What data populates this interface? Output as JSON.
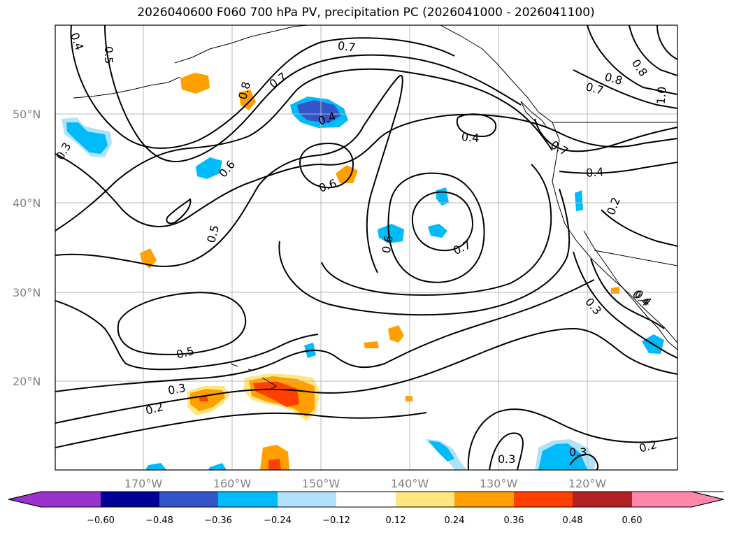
{
  "title": "2026040600 F060 700 hPa PV, precipitation PC (2026041000 - 2026041100)",
  "lat_labels": [
    "50°N",
    "40°N",
    "30°N",
    "20°N"
  ],
  "lon_labels": [
    "170°W",
    "160°W",
    "150°W",
    "140°W",
    "130°W",
    "120°W"
  ],
  "contour_labels": [
    "0.4",
    "0.5",
    "0.7",
    "0.7",
    "0.8",
    "0.4",
    "0.3",
    "0.6",
    "0.8",
    "0.7",
    "0.8",
    "0.4",
    "1.0",
    "0.7",
    "0.4",
    "0.6",
    "0.5",
    "0.6",
    "0.7",
    "0.4",
    "0.2",
    "0.3",
    "0.5",
    "0.3",
    "0.2",
    "0.3",
    "0.3",
    "0.2",
    "0.4"
  ],
  "colorbar": {
    "ticks": [
      "−0.60",
      "−0.48",
      "−0.36",
      "−0.24",
      "−0.12",
      "0.12",
      "0.24",
      "0.36",
      "0.48",
      "0.60"
    ],
    "colors": [
      "#9933cc",
      "#000099",
      "#3355cc",
      "#00bbf9",
      "#b0e2fa",
      "#ffffff",
      "#ffe680",
      "#ffa000",
      "#ff4000",
      "#b22222",
      "#ff88aa"
    ]
  },
  "colors": {
    "neg_strong": "#3355cc",
    "neg_mid": "#00bbf9",
    "neg_weak": "#b0e2fa",
    "pos_weak": "#ffe680",
    "pos_mid": "#ffa000",
    "pos_strong": "#ff4000"
  }
}
